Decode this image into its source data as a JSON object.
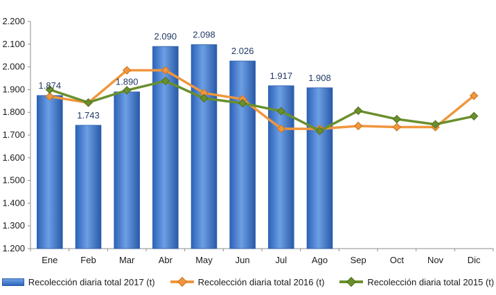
{
  "chart_data": {
    "type": "bar",
    "title": "",
    "xlabel": "",
    "ylabel": "",
    "categories": [
      "Ene",
      "Feb",
      "Mar",
      "Abr",
      "May",
      "Jun",
      "Jul",
      "Ago",
      "Sep",
      "Oct",
      "Nov",
      "Dic"
    ],
    "ylim": [
      1200,
      2200
    ],
    "yticks": [
      1200,
      1300,
      1400,
      1500,
      1600,
      1700,
      1800,
      1900,
      2000,
      2100,
      2200
    ],
    "ytick_labels": [
      "1.200",
      "1.300",
      "1.400",
      "1.500",
      "1.600",
      "1.700",
      "1.800",
      "1.900",
      "2.000",
      "2.100",
      "2.200"
    ],
    "grid": false,
    "legend_position": "bottom",
    "series": [
      {
        "name": "Recolección diaria total 2017 (t)",
        "type": "bar",
        "color": "#3570c8",
        "values": [
          1874,
          1743,
          1890,
          2090,
          2098,
          2026,
          1917,
          1908,
          null,
          null,
          null,
          null
        ],
        "data_labels": [
          "1.874",
          "1.743",
          "1.890",
          "2.090",
          "2.098",
          "2.026",
          "1.917",
          "1.908",
          "",
          "",
          "",
          ""
        ]
      },
      {
        "name": "Recolección diaria total 2016 (t)",
        "type": "line",
        "color": "#f0963c",
        "values": [
          1870,
          1842,
          1985,
          1985,
          1885,
          1858,
          1728,
          1727,
          1740,
          1735,
          1735,
          1873
        ]
      },
      {
        "name": "Recolección diaria total 2015 (t)",
        "type": "line",
        "color": "#6a8f2c",
        "values": [
          1900,
          1843,
          1897,
          1938,
          1862,
          1840,
          1805,
          1718,
          1807,
          1770,
          1747,
          1783
        ]
      }
    ]
  }
}
